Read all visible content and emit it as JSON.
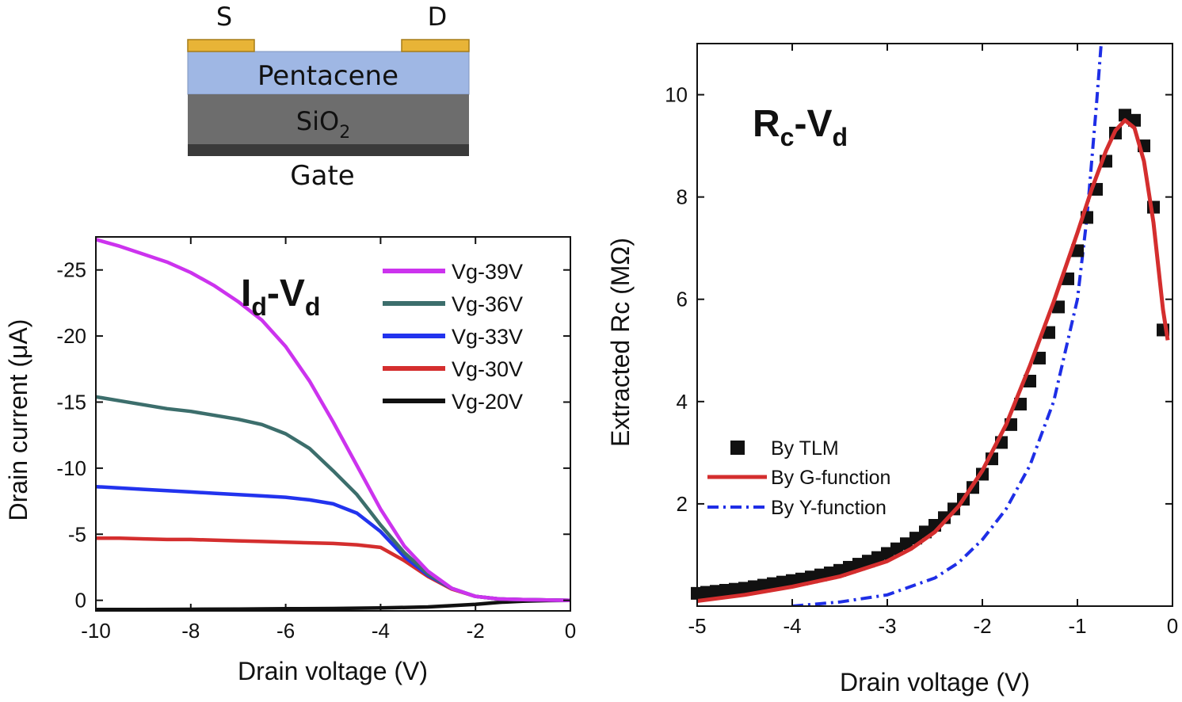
{
  "diagram": {
    "source_label": "S",
    "drain_label": "D",
    "semiconductor_label": "Pentacene",
    "oxide_label": "SiO",
    "oxide_subscript": "2",
    "gate_label": "Gate",
    "colors": {
      "contact": "#e8b437",
      "pentacene": "#9fb7e4",
      "oxide": "#6d6d6d",
      "gate": "#3a3a3a"
    }
  },
  "chart_data": [
    {
      "type": "line",
      "title": "Id-Vd",
      "title_main": "I",
      "title_sub1": "d",
      "title_dash": "-V",
      "title_sub2": "d",
      "xlabel": "Drain voltage (V)",
      "ylabel": "Drain current (μA)",
      "xlim": [
        -10,
        0
      ],
      "ylim": [
        0.8,
        -27.5
      ],
      "y_reversed": true,
      "x_ticks": [
        -10,
        -8,
        -6,
        -4,
        -2,
        0
      ],
      "x_tick_labels": [
        "-10",
        "-8",
        "-6",
        "-4",
        "-2",
        "0"
      ],
      "y_ticks": [
        0,
        -5,
        -10,
        -15,
        -20,
        -25
      ],
      "y_tick_labels": [
        "0",
        "-5",
        "-10",
        "-15",
        "-20",
        "-25"
      ],
      "legend_position": "top-right",
      "series": [
        {
          "name": "Vg-39V",
          "color": "#cc33ee",
          "x": [
            -10,
            -9.5,
            -9,
            -8.5,
            -8,
            -7.5,
            -7,
            -6.5,
            -6,
            -5.5,
            -5,
            -4.5,
            -4,
            -3.5,
            -3,
            -2.5,
            -2,
            -1.5,
            -1,
            -0.5,
            0
          ],
          "y": [
            -27.3,
            -26.8,
            -26.2,
            -25.6,
            -24.8,
            -23.8,
            -22.6,
            -21.2,
            -19.2,
            -16.6,
            -13.5,
            -10.2,
            -6.9,
            -4.1,
            -2.2,
            -0.9,
            -0.3,
            -0.1,
            -0.05,
            -0.02,
            0
          ]
        },
        {
          "name": "Vg-36V",
          "color": "#3c6e6c",
          "x": [
            -10,
            -9.5,
            -9,
            -8.5,
            -8,
            -7.5,
            -7,
            -6.5,
            -6,
            -5.5,
            -5,
            -4.5,
            -4,
            -3.5,
            -3,
            -2.5,
            -2,
            -1.5,
            -1,
            -0.5,
            0
          ],
          "y": [
            -15.4,
            -15.1,
            -14.8,
            -14.5,
            -14.3,
            -14.0,
            -13.7,
            -13.3,
            -12.6,
            -11.5,
            -9.8,
            -8.0,
            -5.7,
            -3.6,
            -2.0,
            -0.9,
            -0.3,
            -0.1,
            -0.05,
            -0.02,
            0
          ]
        },
        {
          "name": "Vg-33V",
          "color": "#2233ee",
          "x": [
            -10,
            -9.5,
            -9,
            -8.5,
            -8,
            -7.5,
            -7,
            -6.5,
            -6,
            -5.5,
            -5,
            -4.5,
            -4,
            -3.5,
            -3,
            -2.5,
            -2,
            -1.5,
            -1,
            -0.5,
            0
          ],
          "y": [
            -8.6,
            -8.5,
            -8.4,
            -8.3,
            -8.2,
            -8.1,
            -8.0,
            -7.9,
            -7.8,
            -7.6,
            -7.3,
            -6.6,
            -5.2,
            -3.3,
            -1.9,
            -0.9,
            -0.3,
            -0.1,
            -0.05,
            -0.02,
            0
          ]
        },
        {
          "name": "Vg-30V",
          "color": "#d42e2e",
          "x": [
            -10,
            -9.5,
            -9,
            -8.5,
            -8,
            -7.5,
            -7,
            -6.5,
            -6,
            -5.5,
            -5,
            -4.5,
            -4,
            -3.5,
            -3,
            -2.5,
            -2,
            -1.5,
            -1,
            -0.5,
            0
          ],
          "y": [
            -4.7,
            -4.7,
            -4.65,
            -4.6,
            -4.6,
            -4.55,
            -4.5,
            -4.45,
            -4.4,
            -4.35,
            -4.3,
            -4.2,
            -4.0,
            -3.0,
            -1.8,
            -0.85,
            -0.3,
            -0.1,
            -0.05,
            -0.02,
            0
          ]
        },
        {
          "name": "Vg-20V",
          "color": "#111111",
          "x": [
            -10,
            -9,
            -8,
            -7,
            -6,
            -5,
            -4,
            -3,
            -2,
            -1.5,
            -1,
            -0.5,
            0
          ],
          "y": [
            0.7,
            0.7,
            0.68,
            0.66,
            0.64,
            0.62,
            0.58,
            0.5,
            0.3,
            0.15,
            0.06,
            0.02,
            0
          ]
        }
      ]
    },
    {
      "type": "line",
      "title": "Rc-Vd",
      "title_main": "R",
      "title_sub1": "c",
      "title_dash": "-V",
      "title_sub2": "d",
      "xlabel": "Drain voltage (V)",
      "ylabel": "Extracted Rc (MΩ)",
      "xlim": [
        -5,
        0
      ],
      "ylim": [
        0,
        11
      ],
      "x_ticks": [
        -5,
        -4,
        -3,
        -2,
        -1,
        0
      ],
      "x_tick_labels": [
        "-5",
        "-4",
        "-3",
        "-2",
        "-1",
        "0"
      ],
      "y_ticks": [
        2,
        4,
        6,
        8,
        10
      ],
      "y_tick_labels": [
        "2",
        "4",
        "6",
        "8",
        "10"
      ],
      "legend_position": "bottom-left",
      "series": [
        {
          "name": "By TLM",
          "style": "square-markers",
          "color": "#111111",
          "x": [
            -5.0,
            -4.9,
            -4.8,
            -4.7,
            -4.6,
            -4.5,
            -4.4,
            -4.3,
            -4.2,
            -4.1,
            -4.0,
            -3.9,
            -3.8,
            -3.7,
            -3.6,
            -3.5,
            -3.4,
            -3.3,
            -3.2,
            -3.1,
            -3.0,
            -2.9,
            -2.8,
            -2.7,
            -2.6,
            -2.5,
            -2.4,
            -2.3,
            -2.2,
            -2.1,
            -2.0,
            -1.9,
            -1.8,
            -1.7,
            -1.6,
            -1.5,
            -1.4,
            -1.3,
            -1.2,
            -1.1,
            -1.0,
            -0.9,
            -0.8,
            -0.7,
            -0.6,
            -0.5,
            -0.4,
            -0.3,
            -0.2,
            -0.1
          ],
          "y": [
            0.25,
            0.27,
            0.29,
            0.31,
            0.33,
            0.35,
            0.38,
            0.41,
            0.44,
            0.47,
            0.5,
            0.53,
            0.57,
            0.61,
            0.65,
            0.7,
            0.76,
            0.82,
            0.88,
            0.95,
            1.03,
            1.12,
            1.22,
            1.33,
            1.45,
            1.58,
            1.73,
            1.9,
            2.09,
            2.32,
            2.58,
            2.88,
            3.2,
            3.55,
            3.95,
            4.4,
            4.85,
            5.35,
            5.85,
            6.4,
            6.95,
            7.6,
            8.15,
            8.7,
            9.25,
            9.6,
            9.5,
            9.0,
            7.8,
            5.4
          ]
        },
        {
          "name": "By G-function",
          "style": "solid",
          "color": "#d42e2e",
          "x": [
            -5.0,
            -4.5,
            -4.0,
            -3.5,
            -3.0,
            -2.75,
            -2.5,
            -2.25,
            -2.0,
            -1.75,
            -1.5,
            -1.25,
            -1.0,
            -0.85,
            -0.7,
            -0.6,
            -0.5,
            -0.4,
            -0.3,
            -0.2,
            -0.1,
            -0.05
          ],
          "y": [
            0.1,
            0.22,
            0.38,
            0.58,
            0.88,
            1.12,
            1.45,
            1.95,
            2.65,
            3.55,
            4.7,
            5.95,
            7.3,
            8.15,
            8.9,
            9.3,
            9.5,
            9.35,
            8.7,
            7.5,
            5.8,
            5.2
          ]
        },
        {
          "name": "By Y-function",
          "style": "dash-dot",
          "color": "#1e2ee6",
          "x": [
            -4.0,
            -3.5,
            -3.0,
            -2.5,
            -2.25,
            -2.0,
            -1.75,
            -1.5,
            -1.25,
            -1.0,
            -0.9,
            -0.8,
            -0.75
          ],
          "y": [
            0.0,
            0.08,
            0.22,
            0.55,
            0.85,
            1.3,
            1.9,
            2.75,
            4.0,
            6.0,
            7.6,
            9.8,
            11.0
          ]
        }
      ]
    }
  ]
}
